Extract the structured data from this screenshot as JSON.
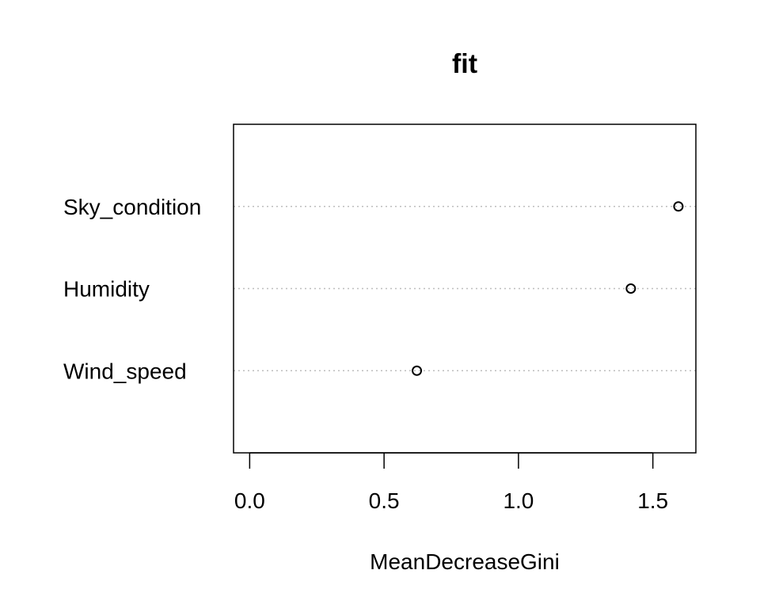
{
  "chart_data": {
    "type": "scatter",
    "title": "fit",
    "xlabel": "MeanDecreaseGini",
    "ylabel": "",
    "categories": [
      "Sky_condition",
      "Humidity",
      "Wind_speed"
    ],
    "values": [
      1.595,
      1.418,
      0.622
    ],
    "xlim": [
      -0.06,
      1.66
    ],
    "xticks": [
      0.0,
      0.5,
      1.0,
      1.5
    ],
    "xtick_labels": [
      "0.0",
      "0.5",
      "1.0",
      "1.5"
    ],
    "grid": "dotted horizontal guide lines per category",
    "marker": "open-circle",
    "colors": {
      "axis": "#000000",
      "guide": "#bebebe",
      "marker": "#000000"
    }
  }
}
